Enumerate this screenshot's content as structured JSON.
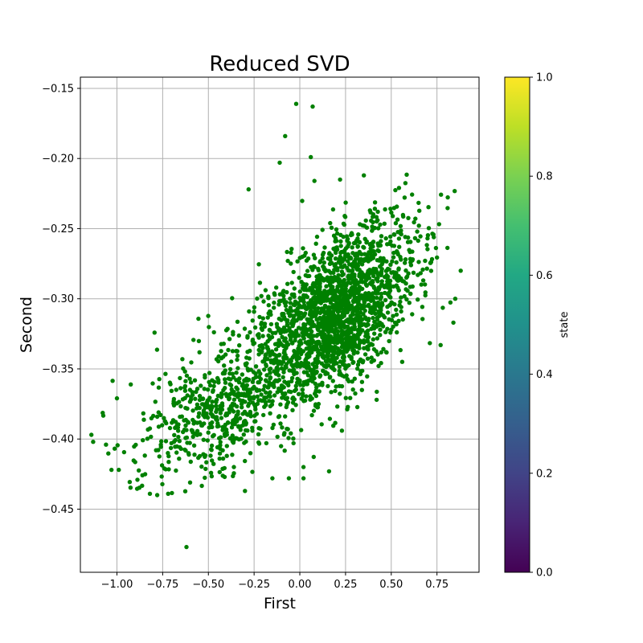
{
  "chart_data": {
    "type": "scatter",
    "title": "Reduced SVD",
    "xlabel": "First",
    "ylabel": "Second",
    "xlim": [
      -1.2,
      0.98
    ],
    "ylim": [
      -0.495,
      -0.142
    ],
    "xticks": [
      -1.0,
      -0.75,
      -0.5,
      -0.25,
      0.0,
      0.25,
      0.5,
      0.75
    ],
    "xtick_labels": [
      "−1.00",
      "−0.75",
      "−0.50",
      "−0.25",
      "0.00",
      "0.25",
      "0.50",
      "0.75"
    ],
    "yticks": [
      -0.15,
      -0.2,
      -0.25,
      -0.3,
      -0.35,
      -0.4,
      -0.45
    ],
    "ytick_labels": [
      "−0.15",
      "−0.20",
      "−0.25",
      "−0.30",
      "−0.35",
      "−0.40",
      "−0.45"
    ],
    "grid": true,
    "marker_color": "#008000",
    "colorbar": {
      "label": "state",
      "colormap": "viridis",
      "range": [
        0.0,
        1.0
      ],
      "ticks": [
        0.0,
        0.2,
        0.4,
        0.6,
        0.8,
        1.0
      ],
      "tick_labels": [
        "0.0",
        "0.2",
        "0.4",
        "0.6",
        "0.8",
        "1.0"
      ]
    },
    "distribution": {
      "point_count_approx": 2500,
      "main_cluster": {
        "center": [
          0.2,
          -0.31
        ],
        "spread": [
          0.22,
          0.032
        ]
      },
      "secondary_cluster": {
        "center": [
          -0.45,
          -0.38
        ],
        "spread": [
          0.22,
          0.025
        ]
      }
    },
    "points": [
      {
        "x": -0.02,
        "y": -0.161
      },
      {
        "x": 0.07,
        "y": -0.163
      },
      {
        "x": -0.08,
        "y": -0.184
      },
      {
        "x": 0.06,
        "y": -0.199
      },
      {
        "x": -0.11,
        "y": -0.203
      },
      {
        "x": -0.28,
        "y": -0.222
      },
      {
        "x": 0.35,
        "y": -0.212
      },
      {
        "x": 0.22,
        "y": -0.215
      },
      {
        "x": 0.08,
        "y": -0.216
      },
      {
        "x": 0.88,
        "y": -0.28
      },
      {
        "x": 0.85,
        "y": -0.3
      },
      {
        "x": 0.84,
        "y": -0.317
      },
      {
        "x": 0.77,
        "y": -0.333
      },
      {
        "x": -1.14,
        "y": -0.397
      },
      {
        "x": -1.13,
        "y": -0.402
      },
      {
        "x": -1.06,
        "y": -0.404
      },
      {
        "x": -1.03,
        "y": -0.422
      },
      {
        "x": -1.0,
        "y": -0.371
      },
      {
        "x": -0.99,
        "y": -0.422
      },
      {
        "x": -0.82,
        "y": -0.439
      },
      {
        "x": -0.78,
        "y": -0.44
      },
      {
        "x": -0.72,
        "y": -0.439
      },
      {
        "x": -0.62,
        "y": -0.477
      },
      {
        "x": -0.6,
        "y": -0.431
      },
      {
        "x": -0.3,
        "y": -0.437
      },
      {
        "x": 0.16,
        "y": -0.423
      },
      {
        "x": 0.02,
        "y": -0.428
      },
      {
        "x": 0.02,
        "y": -0.42
      },
      {
        "x": 0.23,
        "y": -0.394
      },
      {
        "x": 0.42,
        "y": -0.372
      },
      {
        "x": 0.56,
        "y": -0.345
      },
      {
        "x": -0.06,
        "y": -0.428
      },
      {
        "x": -0.15,
        "y": -0.428
      }
    ]
  }
}
